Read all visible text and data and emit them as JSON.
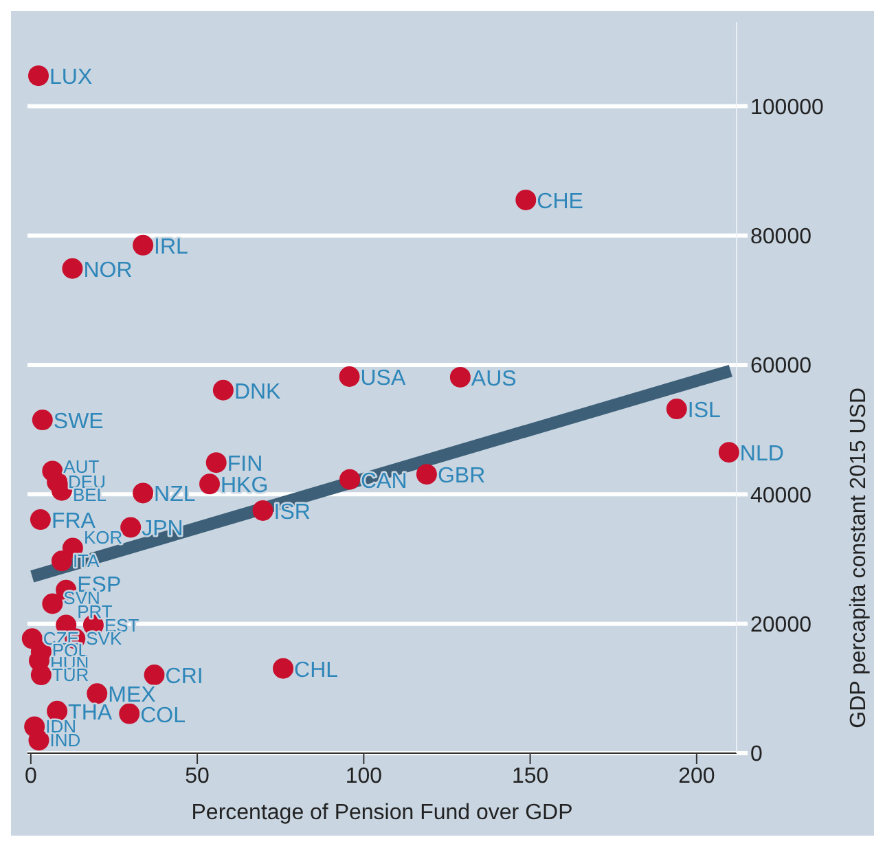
{
  "chart_data": {
    "type": "scatter",
    "xlabel": "Percentage of Pension Fund over GDP",
    "ylabel": "GDP percapita constant 2015 USD",
    "xlim": [
      -1,
      212
    ],
    "ylim": [
      0,
      113000
    ],
    "xticks": [
      0,
      50,
      100,
      150,
      200
    ],
    "yticks": [
      0,
      20000,
      40000,
      60000,
      80000,
      100000
    ],
    "grid": "y",
    "series": [
      {
        "color": "#c8102e",
        "marker": "circle",
        "x": [
          2.3,
          148.7,
          33.7,
          12.5,
          95.7,
          129,
          57.8,
          3.5,
          194,
          209.7,
          55.7,
          53.7,
          95.8,
          118.9,
          69.7,
          75.8,
          6.5,
          7.9,
          9.3,
          33.7,
          2.9,
          30,
          12.6,
          9.3,
          10.6,
          6.5,
          10.6,
          18.8,
          0.4,
          13.3,
          3.1,
          2.5,
          3.1,
          37.1,
          19.9,
          7.9,
          29.6,
          1.1,
          2.4
        ],
        "values": [
          104700,
          85500,
          78500,
          74900,
          58200,
          58100,
          56100,
          51500,
          53200,
          46500,
          44900,
          41600,
          42300,
          43100,
          37500,
          13100,
          43600,
          41900,
          40600,
          40200,
          36100,
          34900,
          31700,
          29700,
          25200,
          23100,
          19800,
          19800,
          17700,
          17700,
          15700,
          14300,
          12100,
          12100,
          9200,
          6500,
          6100,
          4100,
          2000
        ],
        "value_labels": [
          "LUX",
          "CHE",
          "IRL",
          "NOR",
          "USA",
          "AUS",
          "DNK",
          "SWE",
          "ISL",
          "NLD",
          "FIN",
          "HKG",
          "CAN",
          "GBR",
          "ISR",
          "CHL",
          "AUT",
          "DEU",
          "BEL",
          "NZL",
          "FRA",
          "JPN",
          "KOR",
          "ITA",
          "ESP",
          "SVN",
          "PRT",
          "EST",
          "CZE",
          "SVK",
          "POL",
          "HUN",
          "TUR",
          "CRI",
          "MEX",
          "THA",
          "COL",
          "IDN",
          "IND"
        ]
      },
      {
        "type": "line",
        "color": "#3d5f78",
        "x": [
          0.4,
          210.2
        ],
        "values": [
          27300,
          59100
        ]
      }
    ]
  }
}
